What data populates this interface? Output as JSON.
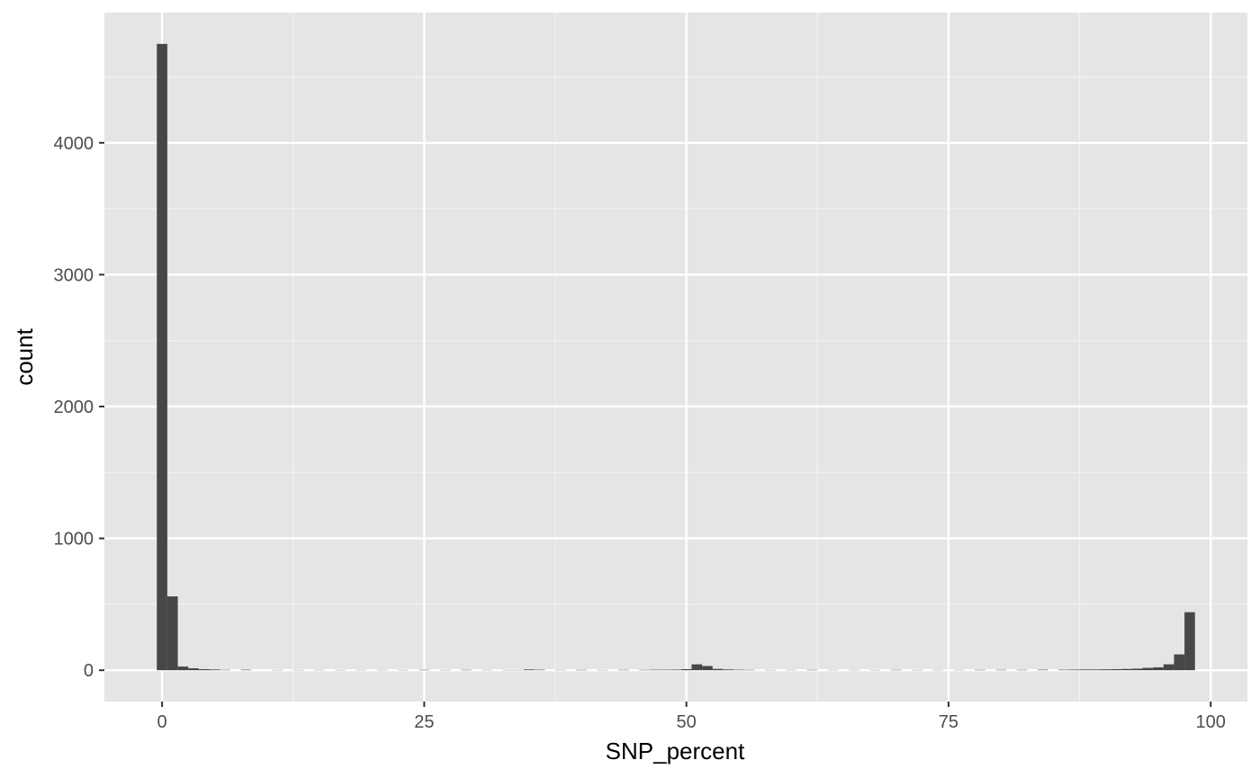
{
  "chart_data": {
    "type": "histogram",
    "title": "",
    "xlabel": "SNP_percent",
    "ylabel": "count",
    "xlim": [
      -5.5,
      103.5
    ],
    "ylim": [
      -237.5,
      4987.5
    ],
    "x_ticks": [
      0,
      25,
      50,
      75,
      100
    ],
    "y_ticks": [
      0,
      1000,
      2000,
      3000,
      4000
    ],
    "x_tick_labels": [
      "0",
      "25",
      "50",
      "75",
      "100"
    ],
    "y_tick_labels": [
      "0",
      "1000",
      "2000",
      "3000",
      "4000"
    ],
    "bin_width": 1,
    "bin_starts": [
      -0.5,
      0.5,
      1.5,
      2.5,
      3.5,
      4.5,
      5.5,
      7.5,
      10.5,
      12.5,
      14.5,
      16.5,
      18.5,
      20.5,
      22.5,
      24.5,
      26.5,
      28.5,
      30.5,
      32.5,
      33.5,
      34.5,
      35.5,
      37.5,
      39.5,
      41.5,
      43.5,
      45.5,
      46.5,
      47.5,
      48.5,
      49.5,
      50.5,
      51.5,
      52.5,
      53.5,
      54.5,
      55.5,
      57.5,
      59.5,
      61.5,
      63.5,
      65.5,
      67.5,
      69.5,
      71.5,
      73.5,
      75.5,
      77.5,
      79.5,
      81.5,
      83.5,
      85.5,
      86.5,
      87.5,
      88.5,
      89.5,
      90.5,
      91.5,
      92.5,
      93.5,
      94.5,
      95.5,
      96.5,
      97.5
    ],
    "counts": [
      4750,
      560,
      28,
      15,
      8,
      6,
      3,
      4,
      2,
      2,
      2,
      2,
      2,
      2,
      2,
      3,
      2,
      3,
      2,
      2,
      2,
      6,
      4,
      2,
      3,
      2,
      3,
      3,
      4,
      4,
      5,
      8,
      45,
      32,
      10,
      6,
      4,
      3,
      2,
      2,
      3,
      2,
      2,
      2,
      3,
      2,
      2,
      2,
      3,
      3,
      3,
      4,
      4,
      5,
      6,
      6,
      7,
      8,
      10,
      12,
      18,
      22,
      45,
      120,
      440
    ],
    "colors": {
      "panel": "#e5e5e5",
      "grid_major": "#ffffff",
      "grid_minor": "#f2f2f2",
      "bar": "#474747",
      "tick": "#333333"
    }
  }
}
